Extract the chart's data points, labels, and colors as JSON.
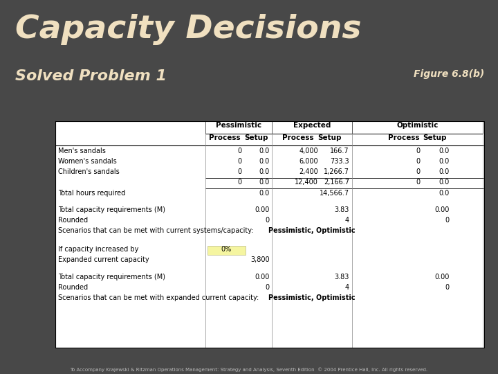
{
  "bg_color": "#484848",
  "title": "Capacity Decisions",
  "subtitle": "Solved Problem 1",
  "figure_ref": "Figure 6.8(b)",
  "footer": "To Accompany Krajewski & Ritzman Operations Management: Strategy and Analysis, Seventh Edition  © 2004 Prentice Hall, Inc. All rights reserved.",
  "title_color": "#f0e0c0",
  "subtitle_color": "#f0e0c0",
  "figure_ref_color": "#f0e0c0",
  "highlight_cell_color": "#f5f5a0",
  "rows": [
    [
      "Men's sandals",
      "0",
      "0.0",
      "4,000",
      "166.7",
      "0",
      "0.0"
    ],
    [
      "Women's sandals",
      "0",
      "0.0",
      "6,000",
      "733.3",
      "0",
      "0.0"
    ],
    [
      "Children's sandals",
      "0",
      "0.0",
      "2,400",
      "1,266.7",
      "0",
      "0.0"
    ],
    [
      "",
      "0",
      "0.0",
      "12,400",
      "2,166.7",
      "0",
      "0.0"
    ]
  ],
  "thr_row": [
    "Total hours required",
    "",
    "0.0",
    "",
    "14,566.7",
    "",
    "0.0"
  ],
  "section2": [
    [
      "Total capacity requirements (M)",
      "",
      "0.00",
      "",
      "3.83",
      "",
      "0.00"
    ],
    [
      "Rounded",
      "",
      "0",
      "",
      "4",
      "",
      "0"
    ],
    [
      "Scenarios that can be met with current systems/capacity:",
      "",
      "",
      "Pessimistic, Optimistic",
      "",
      "",
      ""
    ]
  ],
  "section3_label1": "If capacity increased by",
  "section3_val1": "0%",
  "section3_label2": "Expanded current capacity",
  "section3_val2": "3,800",
  "section4": [
    [
      "Total capacity requirements (M)",
      "",
      "0.00",
      "",
      "3.83",
      "",
      "0.00"
    ],
    [
      "Rounded",
      "",
      "0",
      "",
      "4",
      "",
      "0"
    ],
    [
      "Scenarios that can be met with expanded current capacity:",
      "",
      "",
      "Pessimistic, Optimistic",
      "",
      "",
      ""
    ]
  ]
}
